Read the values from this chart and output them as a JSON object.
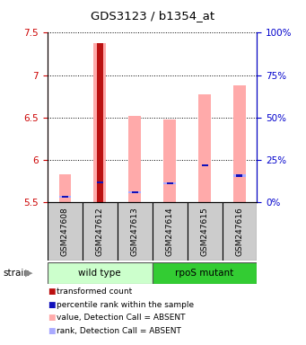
{
  "title": "GDS3123 / b1354_at",
  "samples": [
    "GSM247608",
    "GSM247612",
    "GSM247613",
    "GSM247614",
    "GSM247615",
    "GSM247616"
  ],
  "ylim": [
    5.5,
    7.5
  ],
  "yticks": [
    5.5,
    6.0,
    6.5,
    7.0,
    7.5
  ],
  "ytick_labels": [
    "5.5",
    "6",
    "6.5",
    "7",
    "7.5"
  ],
  "right_yticks": [
    0,
    25,
    50,
    75,
    100
  ],
  "right_ylabels": [
    "0%",
    "25%",
    "50%",
    "75%",
    "100%"
  ],
  "pink_bar_tops": [
    5.83,
    7.38,
    6.52,
    6.47,
    6.77,
    6.88
  ],
  "pink_bar_bottom": 5.5,
  "red_bar_tops": [
    5.5,
    7.38,
    5.5,
    5.5,
    5.5,
    5.5
  ],
  "blue_rank_values": [
    5.56,
    5.73,
    5.61,
    5.72,
    5.93,
    5.81
  ],
  "light_blue_rank_values": [
    5.56,
    5.5,
    5.61,
    5.72,
    5.5,
    5.81
  ],
  "colors": {
    "red_bar": "#bb1111",
    "blue_rank": "#1111bb",
    "pink_bar": "#ffaaaa",
    "light_blue": "#aaaaff",
    "axis_red": "#cc0000",
    "axis_blue": "#0000cc"
  },
  "wild_type_color": "#ccffcc",
  "rpos_mutant_color": "#33cc33",
  "label_bg": "#cccccc"
}
